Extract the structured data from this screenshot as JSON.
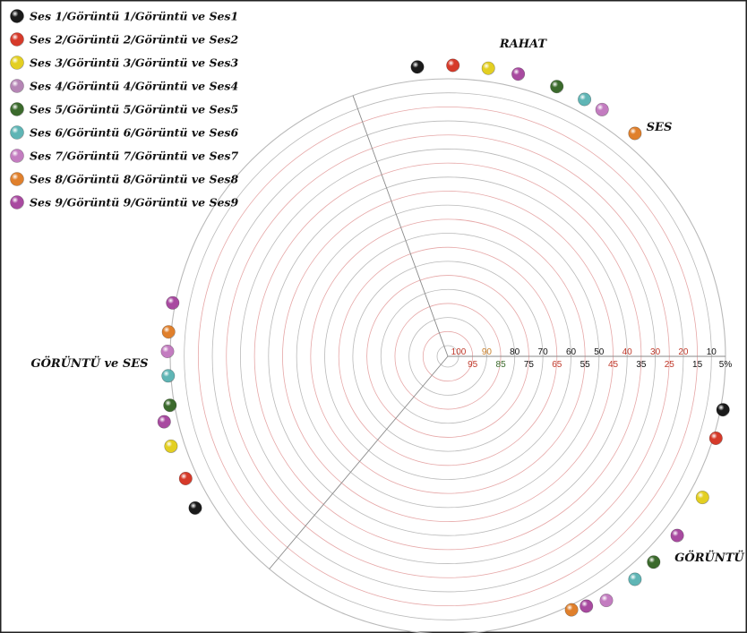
{
  "chart_data": {
    "type": "scatter",
    "subtype": "polar-rings",
    "title": "",
    "colors": {
      "black": "#1a1a1a",
      "red": "#d63a2a",
      "yellow": "#e3cf22",
      "lilac": "#b585b5",
      "green": "#3b6a2c",
      "cyan": "#5fb5b5",
      "pink": "#c37cc0",
      "orange": "#e0802c",
      "magenta": "#a84aa0"
    },
    "legend": [
      {
        "label": "Ses 1/Görüntü 1/Görüntü ve Ses1",
        "color": "#1a1a1a"
      },
      {
        "label": "Ses 2/Görüntü 2/Görüntü ve Ses2",
        "color": "#d63a2a"
      },
      {
        "label": "Ses 3/Görüntü 3/Görüntü ve Ses3",
        "color": "#e3cf22"
      },
      {
        "label": "Ses 4/Görüntü 4/Görüntü ve Ses4",
        "color": "#b585b5"
      },
      {
        "label": "Ses 5/Görüntü 5/Görüntü ve Ses5",
        "color": "#3b6a2c"
      },
      {
        "label": "Ses 6/Görüntü 6/Görüntü ve Ses6",
        "color": "#5fb5b5"
      },
      {
        "label": "Ses 7/Görüntü 7/Görüntü ve Ses7",
        "color": "#c37cc0"
      },
      {
        "label": "Ses 8/Görüntü 8/Görüntü ve Ses8",
        "color": "#e0802c"
      },
      {
        "label": "Ses 9/Görüntü 9/Görüntü ve Ses9",
        "color": "#a84aa0"
      }
    ],
    "categories": [
      {
        "name": "RAHAT"
      },
      {
        "name": "SES"
      },
      {
        "name": "GÖRÜNTÜ"
      },
      {
        "name": "GÖRÜNTÜ ve SES"
      }
    ],
    "rings": [
      5,
      10,
      15,
      20,
      25,
      30,
      35,
      40,
      45,
      50,
      55,
      60,
      65,
      70,
      75,
      80,
      85,
      90,
      95,
      100
    ],
    "tick_labels": [
      {
        "value": 100,
        "text": "100",
        "row": "upper",
        "color": "#c03a2b"
      },
      {
        "value": 95,
        "text": "95",
        "row": "lower",
        "color": "#c03a2b"
      },
      {
        "value": 90,
        "text": "90",
        "row": "upper",
        "color": "#c9802c"
      },
      {
        "value": 85,
        "text": "85",
        "row": "lower",
        "color": "#3b6a2c"
      },
      {
        "value": 80,
        "text": "80",
        "row": "upper",
        "color": "#111111"
      },
      {
        "value": 75,
        "text": "75",
        "row": "lower",
        "color": "#111111"
      },
      {
        "value": 70,
        "text": "70",
        "row": "upper",
        "color": "#111111"
      },
      {
        "value": 65,
        "text": "65",
        "row": "lower",
        "color": "#c03a2b"
      },
      {
        "value": 60,
        "text": "60",
        "row": "upper",
        "color": "#111111"
      },
      {
        "value": 55,
        "text": "55",
        "row": "lower",
        "color": "#111111"
      },
      {
        "value": 50,
        "text": "50",
        "row": "upper",
        "color": "#111111"
      },
      {
        "value": 45,
        "text": "45",
        "row": "lower",
        "color": "#c03a2b"
      },
      {
        "value": 40,
        "text": "40",
        "row": "upper",
        "color": "#c03a2b"
      },
      {
        "value": 35,
        "text": "35",
        "row": "lower",
        "color": "#111111"
      },
      {
        "value": 30,
        "text": "30",
        "row": "upper",
        "color": "#c03a2b"
      },
      {
        "value": 25,
        "text": "25",
        "row": "lower",
        "color": "#c03a2b"
      },
      {
        "value": 20,
        "text": "20",
        "row": "upper",
        "color": "#c03a2b"
      },
      {
        "value": 15,
        "text": "15",
        "row": "lower",
        "color": "#111111"
      },
      {
        "value": 10,
        "text": "10",
        "row": "upper",
        "color": "#111111"
      },
      {
        "value": 5,
        "text": "5%",
        "row": "lower",
        "color": "#111111"
      }
    ],
    "points": [
      {
        "angle_deg": 96,
        "value": 6,
        "color": "#1a1a1a"
      },
      {
        "angle_deg": 89,
        "value": 6,
        "color": "#d63a2a"
      },
      {
        "angle_deg": 82,
        "value": 6,
        "color": "#e3cf22"
      },
      {
        "angle_deg": 76,
        "value": 6,
        "color": "#a84aa0"
      },
      {
        "angle_deg": 68,
        "value": 6,
        "color": "#3b6a2c"
      },
      {
        "angle_deg": 62,
        "value": 6,
        "color": "#5fb5b5"
      },
      {
        "angle_deg": 58,
        "value": 6,
        "color": "#c37cc0"
      },
      {
        "angle_deg": 50,
        "value": 6,
        "color": "#e0802c"
      },
      {
        "angle_deg": -11,
        "value": 0,
        "color": "#1a1a1a"
      },
      {
        "angle_deg": -17,
        "value": 0,
        "color": "#d63a2a"
      },
      {
        "angle_deg": -29,
        "value": 6,
        "color": "#e3cf22"
      },
      {
        "angle_deg": -38,
        "value": 6,
        "color": "#a84aa0"
      },
      {
        "angle_deg": -45,
        "value": 6,
        "color": "#3b6a2c"
      },
      {
        "angle_deg": -50,
        "value": 6,
        "color": "#5fb5b5"
      },
      {
        "angle_deg": -57,
        "value": 6,
        "color": "#c37cc0"
      },
      {
        "angle_deg": -61,
        "value": 3,
        "color": "#a84aa0"
      },
      {
        "angle_deg": -64,
        "value": 1,
        "color": "#e0802c"
      },
      {
        "angle_deg": 169,
        "value": 0,
        "color": "#a84aa0"
      },
      {
        "angle_deg": 175,
        "value": 0,
        "color": "#e0802c"
      },
      {
        "angle_deg": 179,
        "value": 0,
        "color": "#c37cc0"
      },
      {
        "angle_deg": 184,
        "value": 0,
        "color": "#5fb5b5"
      },
      {
        "angle_deg": 190,
        "value": 1,
        "color": "#3b6a2c"
      },
      {
        "angle_deg": 193,
        "value": 6,
        "color": "#a84aa0"
      },
      {
        "angle_deg": 198,
        "value": 6,
        "color": "#e3cf22"
      },
      {
        "angle_deg": 205,
        "value": 5,
        "color": "#d63a2a"
      },
      {
        "angle_deg": 211,
        "value": 8,
        "color": "#1a1a1a"
      }
    ],
    "sector_lines_deg": [
      0,
      110,
      230
    ],
    "grid": true,
    "legend_position": "top-left"
  }
}
